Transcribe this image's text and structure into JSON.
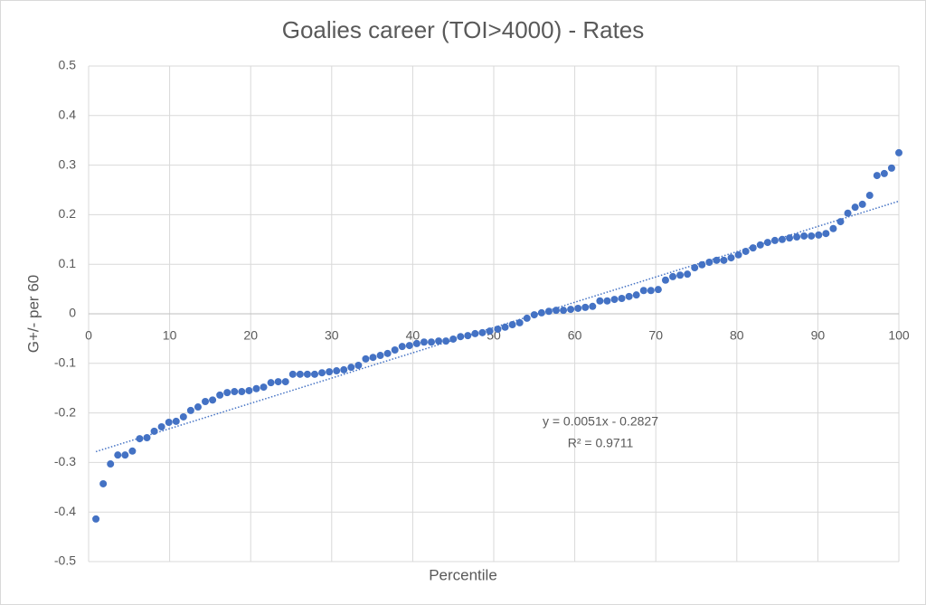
{
  "chart_data": {
    "type": "scatter",
    "title": "Goalies career (TOI>4000) - Rates",
    "x_label": "Percentile",
    "y_label": "G+/- per 60",
    "series": [
      {
        "color": "#4472c4",
        "x": [
          0.9,
          1.8,
          2.7,
          3.6,
          4.5,
          5.4,
          6.3,
          7.2,
          8.1,
          9.0,
          9.9,
          10.8,
          11.7,
          12.6,
          13.5,
          14.4,
          15.3,
          16.2,
          17.1,
          18.0,
          18.9,
          19.8,
          20.7,
          21.6,
          22.5,
          23.4,
          24.3,
          25.2,
          26.1,
          27.0,
          27.9,
          28.8,
          29.7,
          30.6,
          31.5,
          32.4,
          33.3,
          34.2,
          35.1,
          36.0,
          36.9,
          37.8,
          38.7,
          39.6,
          40.5,
          41.4,
          42.3,
          43.2,
          44.1,
          45.0,
          45.9,
          46.8,
          47.7,
          48.6,
          49.5,
          50.5,
          51.4,
          52.3,
          53.2,
          54.1,
          55.0,
          55.9,
          56.8,
          57.7,
          58.6,
          59.5,
          60.4,
          61.3,
          62.2,
          63.1,
          64.0,
          64.9,
          65.8,
          66.7,
          67.6,
          68.5,
          69.4,
          70.3,
          71.2,
          72.1,
          73.0,
          73.9,
          74.8,
          75.7,
          76.6,
          77.5,
          78.4,
          79.3,
          80.2,
          81.1,
          82.0,
          82.9,
          83.8,
          84.7,
          85.6,
          86.5,
          87.4,
          88.3,
          89.2,
          90.1,
          91.0,
          91.9,
          92.8,
          93.7,
          94.6,
          95.5,
          96.4,
          97.3,
          98.2,
          99.1,
          100.0
        ],
        "values": [
          -0.414,
          -0.343,
          -0.303,
          -0.285,
          -0.285,
          -0.277,
          -0.252,
          -0.25,
          -0.237,
          -0.228,
          -0.219,
          -0.217,
          -0.208,
          -0.195,
          -0.188,
          -0.177,
          -0.174,
          -0.164,
          -0.159,
          -0.157,
          -0.157,
          -0.155,
          -0.151,
          -0.148,
          -0.139,
          -0.137,
          -0.137,
          -0.122,
          -0.122,
          -0.122,
          -0.122,
          -0.119,
          -0.117,
          -0.115,
          -0.113,
          -0.108,
          -0.104,
          -0.091,
          -0.088,
          -0.084,
          -0.08,
          -0.073,
          -0.066,
          -0.064,
          -0.06,
          -0.057,
          -0.057,
          -0.055,
          -0.055,
          -0.051,
          -0.046,
          -0.044,
          -0.04,
          -0.038,
          -0.035,
          -0.031,
          -0.027,
          -0.022,
          -0.018,
          -0.009,
          -0.002,
          0.002,
          0.005,
          0.007,
          0.007,
          0.009,
          0.011,
          0.013,
          0.015,
          0.026,
          0.026,
          0.029,
          0.031,
          0.035,
          0.038,
          0.047,
          0.047,
          0.049,
          0.068,
          0.075,
          0.078,
          0.08,
          0.093,
          0.099,
          0.104,
          0.108,
          0.108,
          0.113,
          0.119,
          0.126,
          0.133,
          0.139,
          0.144,
          0.148,
          0.15,
          0.153,
          0.155,
          0.157,
          0.157,
          0.159,
          0.162,
          0.172,
          0.186,
          0.203,
          0.215,
          0.221,
          0.239,
          0.279,
          0.283,
          0.294,
          0.325
        ]
      }
    ],
    "trendline": {
      "equation": "y = 0.0051x - 0.2827",
      "r_squared": "R² = 0.9711",
      "slope": 0.0051,
      "intercept": -0.2827,
      "color": "#4472c4"
    },
    "xlim": [
      0,
      100
    ],
    "xticks": [
      0,
      10,
      20,
      30,
      40,
      50,
      60,
      70,
      80,
      90,
      100
    ],
    "ylim": [
      -0.5,
      0.5
    ],
    "yticks": [
      -0.5,
      -0.4,
      -0.3,
      -0.2,
      -0.1,
      0,
      0.1,
      0.2,
      0.3,
      0.4,
      0.5
    ],
    "grid": true
  }
}
